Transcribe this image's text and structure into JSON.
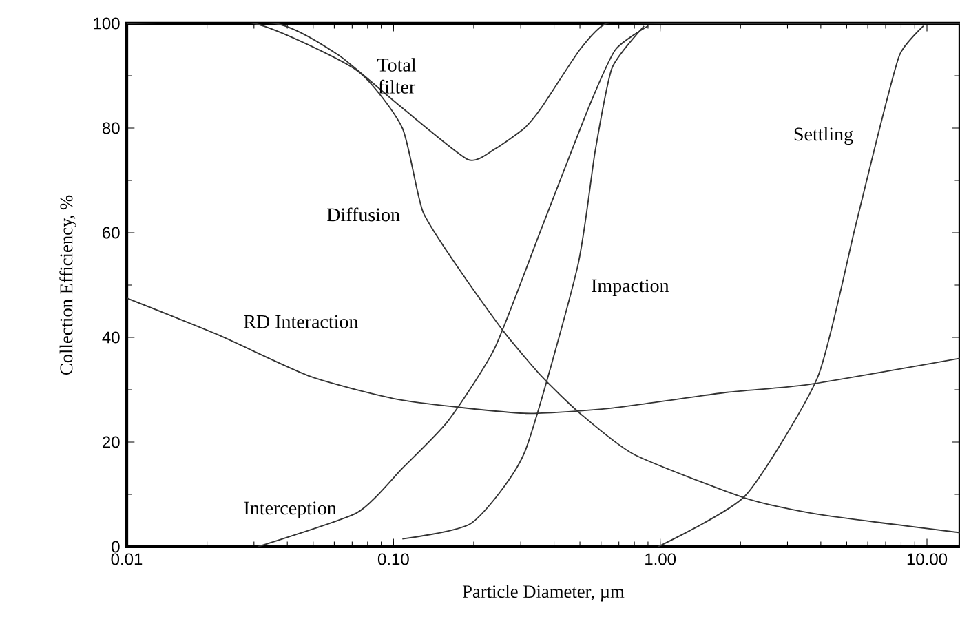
{
  "chart_data": {
    "type": "line",
    "xlabel": "Particle Diameter, µm",
    "ylabel": "Collection Efficiency, %",
    "log": "x",
    "xlim": [
      0.01,
      13.3
    ],
    "ylim": [
      0,
      100
    ],
    "xticks": [
      0.01,
      {
        "value": 0.1,
        "label": "0.10"
      },
      {
        "value": 1,
        "label": "1.00"
      },
      {
        "value": 10,
        "label": "10.00"
      }
    ],
    "yticks": [
      0,
      20,
      40,
      60,
      80,
      100
    ],
    "grid": false,
    "series": [
      {
        "color": "#333333",
        "x": [
          0.01,
          0.036,
          0.062,
          0.107,
          0.19,
          0.24,
          0.31,
          0.36,
          0.5,
          0.63,
          1,
          13.3
        ],
        "values": [
          100,
          100,
          94,
          84,
          74,
          76,
          80,
          84,
          95,
          100,
          100,
          100
        ]
      },
      {
        "color": "#333333",
        "x": [
          0.01,
          0.03,
          0.073,
          0.108,
          0.129,
          0.182,
          0.26,
          0.36,
          0.5,
          0.8,
          2.08,
          3.9,
          13.3
        ],
        "values": [
          100,
          100,
          91,
          80,
          64,
          52,
          41,
          32.5,
          25.5,
          17.6,
          9.3,
          6.2,
          2.7
        ]
      },
      {
        "color": "#333333",
        "x": [
          0.01,
          0.022,
          0.049,
          0.108,
          0.31,
          0.66,
          1.78,
          3.6,
          13.3
        ],
        "values": [
          47.5,
          40.5,
          32.5,
          28,
          25.5,
          26.5,
          29.5,
          31,
          36
        ]
      },
      {
        "color": "#333333",
        "x": [
          0.031,
          0.073,
          0.108,
          0.16,
          0.24,
          0.36,
          0.54,
          0.68,
          0.9
        ],
        "values": [
          0,
          6.5,
          15,
          24,
          38,
          61,
          84,
          95,
          99.5
        ]
      },
      {
        "color": "#333333",
        "x": [
          0.108,
          0.196,
          0.31,
          0.49,
          0.57,
          0.66,
          0.87
        ],
        "values": [
          1.5,
          4.5,
          18,
          53.5,
          75.5,
          91.5,
          99.5
        ]
      },
      {
        "color": "#333333",
        "x": [
          0.98,
          2.08,
          3.9,
          5.35,
          6.5,
          7.9,
          9.7
        ],
        "values": [
          0,
          9.7,
          32.5,
          60.5,
          78,
          94,
          99.5
        ]
      }
    ],
    "annotations": [
      "Total filter",
      "Diffusion",
      "RD Interaction",
      "Interception",
      "Impaction",
      "Settling"
    ]
  }
}
